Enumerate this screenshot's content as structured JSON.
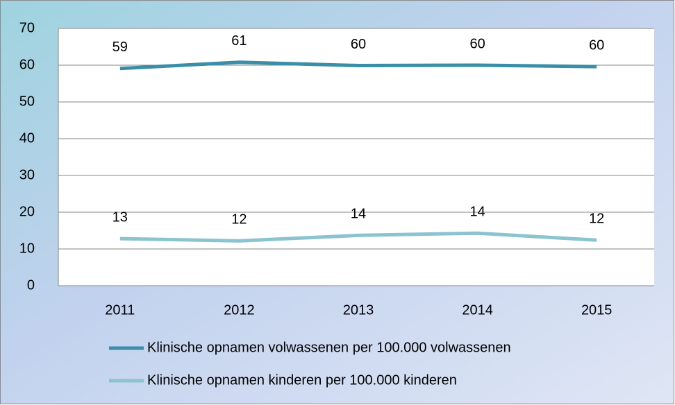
{
  "chart_data": {
    "type": "line",
    "categories": [
      "2011",
      "2012",
      "2013",
      "2014",
      "2015"
    ],
    "series": [
      {
        "name": "Klinische opnamen volwassenen per 100.000 volwassenen",
        "color": "#3a8ea8",
        "values": [
          59.1,
          60.8,
          59.9,
          60.0,
          59.6
        ],
        "value_labels": [
          "59",
          "61",
          "60",
          "60",
          "60"
        ]
      },
      {
        "name": "Klinische opnamen kinderen per 100.000 kinderen",
        "color": "#8cc3d1",
        "values": [
          12.8,
          12.2,
          13.7,
          14.3,
          12.4
        ],
        "value_labels": [
          "13",
          "12",
          "14",
          "14",
          "12"
        ]
      }
    ],
    "ylim": [
      0,
      70
    ],
    "yticks": [
      0,
      10,
      20,
      30,
      40,
      50,
      60,
      70
    ],
    "grid": true
  }
}
